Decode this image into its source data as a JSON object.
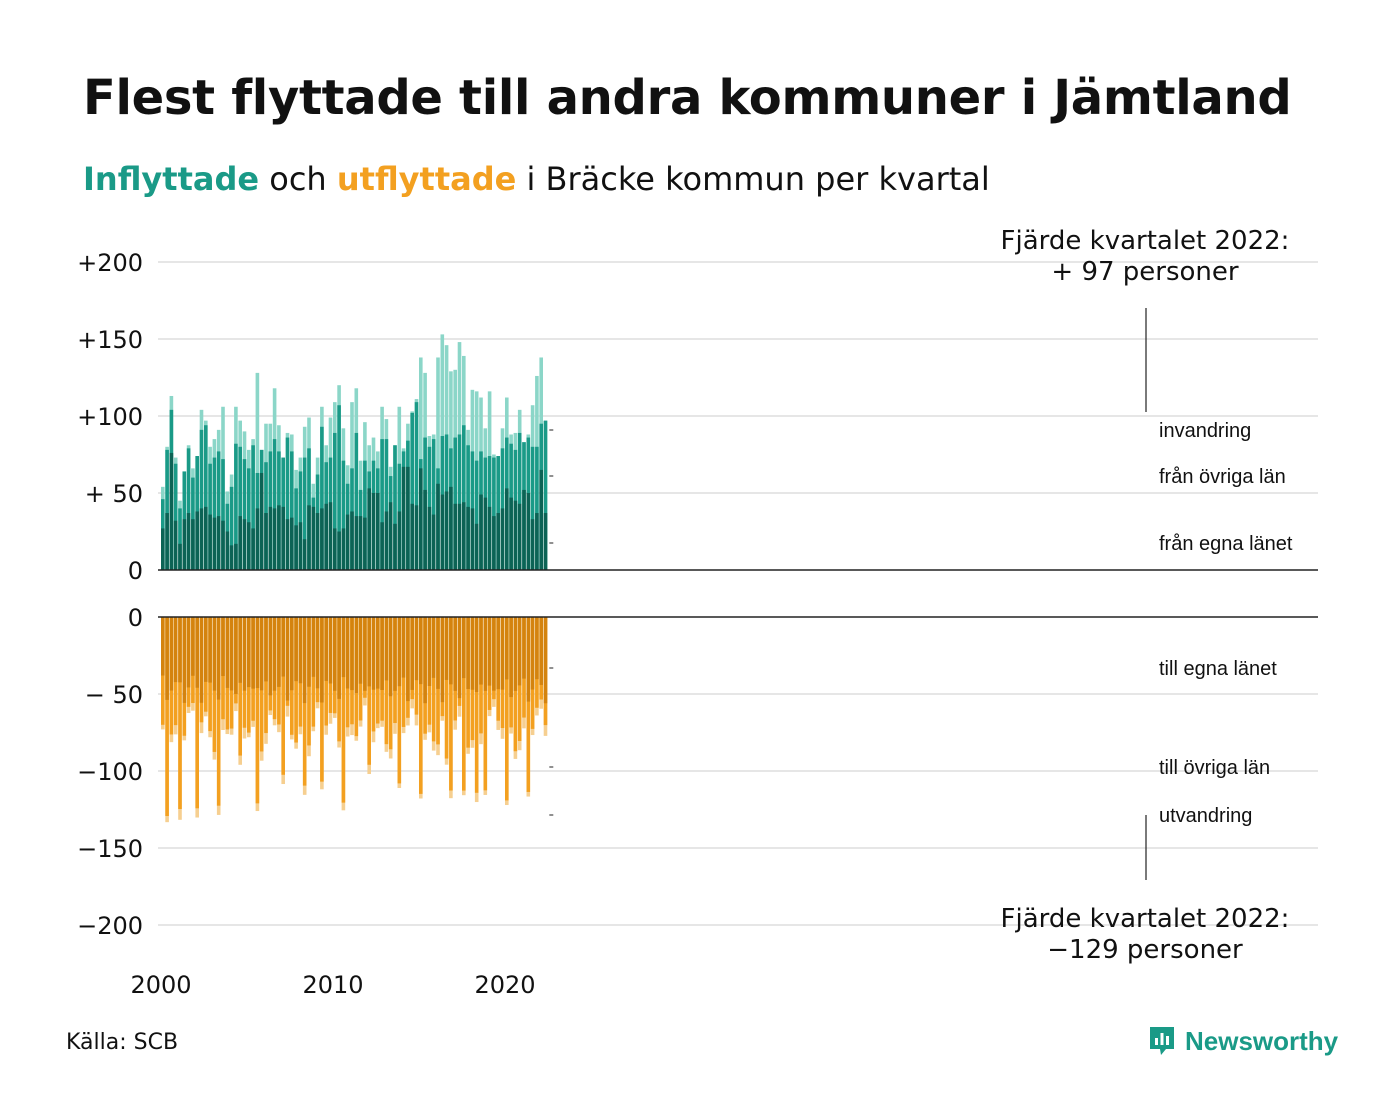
{
  "title": "Flest flyttade till andra kommuner i Jämtland",
  "subtitle": {
    "in_word": "Inflyttade",
    "mid": " och ",
    "out_word": "utflyttade",
    "rest": " i Bräcke kommun per kvartal"
  },
  "colors": {
    "in_dark": "#0c6355",
    "in_mid": "#1a9a87",
    "in_light": "#8bd6c8",
    "out_dark": "#d4830e",
    "out_mid": "#f3a020",
    "out_light": "#f6cf90",
    "title_teal": "#1a9a87",
    "title_orange": "#f3a020",
    "grid": "#dddddd"
  },
  "source": "Källa: SCB",
  "brand": {
    "name": "Newsworthy",
    "icon": "bar-chart-bubble-icon",
    "color": "#1a9a87"
  },
  "chart_data": {
    "type": "bar",
    "stacked": true,
    "x_label_start": 2000,
    "x_ticks": [
      "2000",
      "2010",
      "2020"
    ],
    "y_top_ticks": [
      "+200",
      "+150",
      "+100",
      "+ 50",
      "0"
    ],
    "y_bottom_ticks": [
      "0",
      "− 50",
      "−100",
      "−150",
      "−200"
    ],
    "ylim_in": [
      0,
      200
    ],
    "ylim_out": [
      -200,
      0
    ],
    "annotation_top": {
      "line1": "Fjärde kvartalet 2022:",
      "line2": "+ 97 personer"
    },
    "annotation_bottom": {
      "line1": "Fjärde kvartalet 2022:",
      "line2": "−129 personer"
    },
    "in_series_names": [
      "från egna länet",
      "från övriga län",
      "invandring"
    ],
    "out_series_names": [
      "till egna länet",
      "till övriga län",
      "utvandring"
    ],
    "in_totals": [
      54,
      80,
      113,
      73,
      45,
      64,
      81,
      66,
      74,
      104,
      97,
      80,
      85,
      91,
      106,
      51,
      62,
      106,
      97,
      90,
      78,
      85,
      128,
      78,
      95,
      95,
      118,
      94,
      73,
      89,
      88,
      65,
      73,
      93,
      99,
      56,
      73,
      106,
      81,
      99,
      109,
      120,
      92,
      68,
      109,
      118,
      71,
      96,
      81,
      86,
      77,
      106,
      98,
      67,
      81,
      106,
      79,
      95,
      103,
      111,
      138,
      128,
      87,
      88,
      138,
      153,
      146,
      129,
      130,
      148,
      139,
      91,
      117,
      116,
      112,
      92,
      116,
      75,
      74,
      92,
      112,
      88,
      89,
      104,
      83,
      88,
      107,
      126,
      138,
      97
    ],
    "in_dom": [
      27,
      37,
      76,
      32,
      17,
      33,
      37,
      33,
      38,
      40,
      41,
      36,
      34,
      35,
      32,
      25,
      16,
      17,
      35,
      33,
      31,
      27,
      40,
      63,
      37,
      41,
      40,
      42,
      41,
      33,
      34,
      29,
      31,
      20,
      42,
      41,
      37,
      40,
      43,
      44,
      27,
      25,
      27,
      36,
      38,
      35,
      35,
      34,
      53,
      50,
      50,
      31,
      38,
      44,
      30,
      38,
      67,
      67,
      43,
      42,
      66,
      52,
      41,
      36,
      56,
      49,
      51,
      54,
      43,
      43,
      44,
      41,
      40,
      30,
      49,
      47,
      41,
      35,
      37,
      40,
      53,
      47,
      45,
      43,
      52,
      50,
      33,
      37,
      65,
      37
    ],
    "in_region": [
      46,
      78,
      104,
      69,
      40,
      64,
      79,
      60,
      74,
      91,
      94,
      69,
      73,
      77,
      72,
      43,
      54,
      82,
      80,
      72,
      66,
      81,
      63,
      81,
      70,
      77,
      85,
      77,
      73,
      86,
      77,
      53,
      64,
      73,
      79,
      47,
      62,
      93,
      70,
      73,
      89,
      107,
      71,
      56,
      66,
      89,
      52,
      71,
      64,
      71,
      66,
      85,
      85,
      61,
      82,
      69,
      77,
      84,
      102,
      109,
      72,
      86,
      80,
      85,
      66,
      87,
      88,
      79,
      86,
      88,
      94,
      81,
      77,
      71,
      77,
      73,
      74,
      73,
      77,
      79,
      86,
      82,
      78,
      89,
      85,
      86,
      80,
      80,
      95,
      106
    ]
  }
}
